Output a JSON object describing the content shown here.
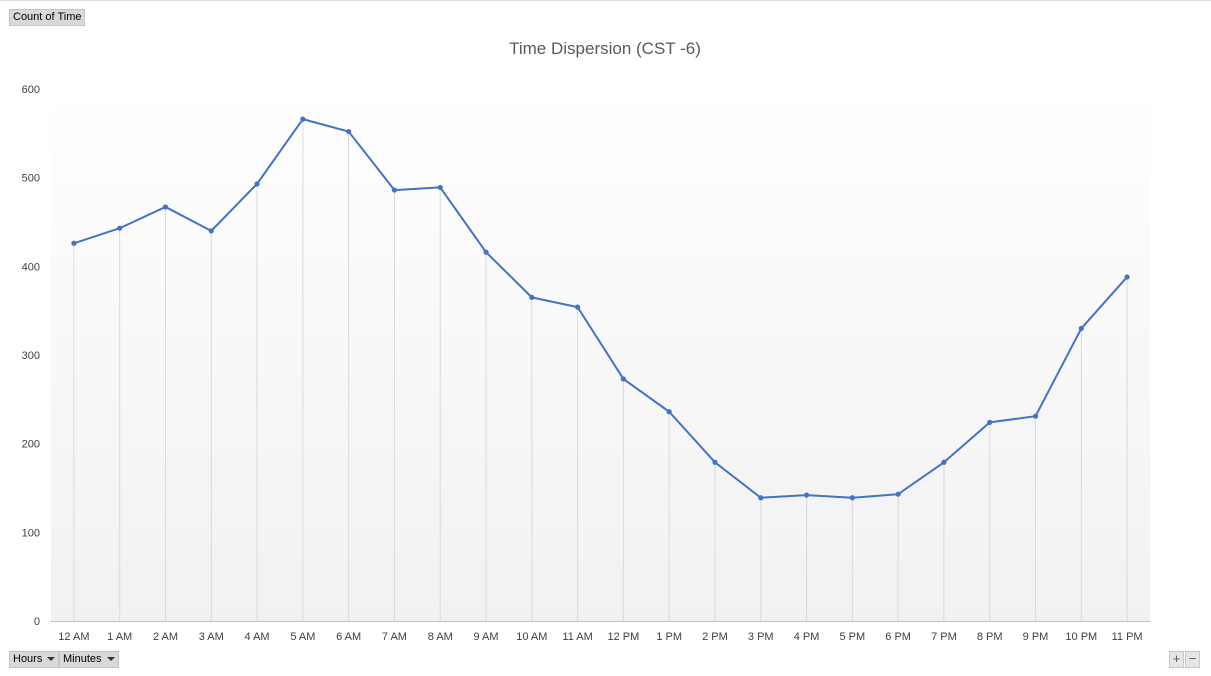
{
  "controls": {
    "value_field": "Count of Time",
    "row_fields": [
      "Hours",
      "Minutes"
    ],
    "zoom_in": "+",
    "zoom_out": "−"
  },
  "chart_data": {
    "type": "line",
    "title": "Time Dispersion (CST -6)",
    "xlabel": "",
    "ylabel": "",
    "categories": [
      "12 AM",
      "1 AM",
      "2 AM",
      "3 AM",
      "4 AM",
      "5 AM",
      "6 AM",
      "7 AM",
      "8 AM",
      "9 AM",
      "10 AM",
      "11 AM",
      "12 PM",
      "1 PM",
      "2 PM",
      "3 PM",
      "4 PM",
      "5 PM",
      "6 PM",
      "7 PM",
      "8 PM",
      "9 PM",
      "10 PM",
      "11 PM"
    ],
    "series": [
      {
        "values": [
          426,
          443,
          467,
          440,
          493,
          566,
          552,
          486,
          489,
          416,
          365,
          354,
          273,
          236,
          179,
          139,
          142,
          139,
          143,
          179,
          224,
          231,
          330,
          388
        ]
      }
    ],
    "ylim": [
      0,
      600
    ],
    "yticks": [
      0,
      100,
      200,
      300,
      400,
      500,
      600
    ],
    "grid": "vertical",
    "legend": "none",
    "line_color": "#4472c4",
    "grid_color": "#d9d9d9",
    "title_color": "#595959",
    "tick_color": "#404040"
  }
}
